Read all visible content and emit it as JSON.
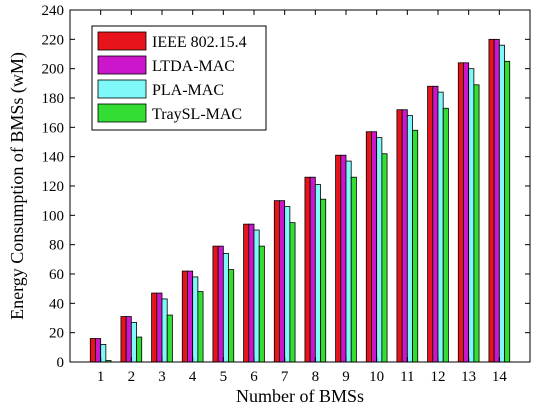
{
  "chart_data": {
    "type": "bar",
    "title": "",
    "xlabel": "Number of BMSs",
    "ylabel": "Energy Consumption of BMSs (wM)",
    "categories": [
      "1",
      "2",
      "3",
      "4",
      "5",
      "6",
      "7",
      "8",
      "9",
      "10",
      "11",
      "12",
      "13",
      "14"
    ],
    "ylim": [
      0,
      240
    ],
    "yticks": [
      "0",
      "20",
      "40",
      "60",
      "80",
      "100",
      "120",
      "140",
      "160",
      "180",
      "200",
      "220",
      "240"
    ],
    "grid": false,
    "legend_position": "top-left",
    "series": [
      {
        "name": "IEEE 802.15.4",
        "color": "#e8141c",
        "values": [
          16,
          31,
          47,
          62,
          79,
          94,
          110,
          126,
          141,
          157,
          172,
          188,
          204,
          220
        ]
      },
      {
        "name": "LTDA-MAC",
        "color": "#cc16cc",
        "values": [
          16,
          31,
          47,
          62,
          79,
          94,
          110,
          126,
          141,
          157,
          172,
          188,
          204,
          220
        ]
      },
      {
        "name": "PLA-MAC",
        "color": "#7ef8f8",
        "values": [
          12,
          27,
          43,
          58,
          74,
          90,
          106,
          121,
          137,
          153,
          168,
          184,
          200,
          216
        ]
      },
      {
        "name": "TraySL-MAC",
        "color": "#33dd33",
        "values": [
          1,
          17,
          32,
          48,
          63,
          79,
          95,
          111,
          126,
          142,
          158,
          173,
          189,
          205
        ]
      }
    ]
  }
}
